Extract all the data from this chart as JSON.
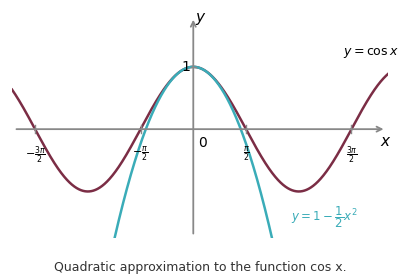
{
  "title": "Quadratic approximation to the function cos x.",
  "cos_color": "#7b2d45",
  "parabola_color": "#3aacb8",
  "axis_color": "#888888",
  "background_color": "#ffffff",
  "xlim": [
    -5.4,
    5.8
  ],
  "ylim": [
    -1.75,
    1.85
  ],
  "x_ticks": [
    -4.71238898,
    -1.5707963,
    1.5707963,
    4.71238898
  ],
  "x_tick_labels": [
    "-\\frac{3\\pi}{2}",
    "-\\frac{\\pi}{2}",
    "\\frac{\\pi}{2}",
    "\\frac{3\\pi}{2}"
  ],
  "y_tick_val": 1,
  "y_tick_label": "1",
  "label_cos": "$y = \\cos x$",
  "label_x": "$x$",
  "label_y": "$y$",
  "label_zero": "0"
}
